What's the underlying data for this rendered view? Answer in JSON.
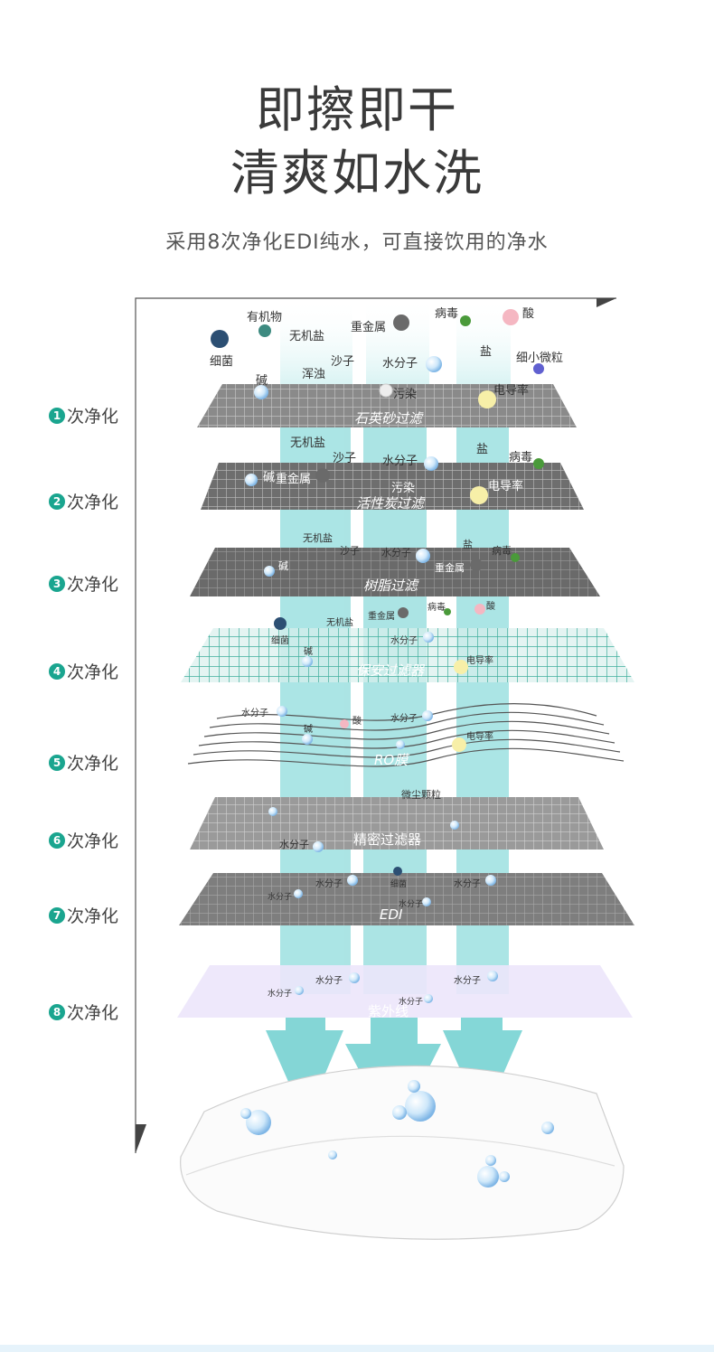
{
  "header": {
    "title_line1": "即擦即干",
    "title_line2": "清爽如水洗",
    "subtitle": "采用8次净化EDI纯水，可直接饮用的净水"
  },
  "steps": [
    {
      "num": "1",
      "label": "次净化"
    },
    {
      "num": "2",
      "label": "次净化"
    },
    {
      "num": "3",
      "label": "次净化"
    },
    {
      "num": "4",
      "label": "次净化"
    },
    {
      "num": "5",
      "label": "次净化"
    },
    {
      "num": "6",
      "label": "次净化"
    },
    {
      "num": "7",
      "label": "次净化"
    },
    {
      "num": "8",
      "label": "次净化"
    }
  ],
  "layers": [
    {
      "name": "石英砂过滤"
    },
    {
      "name": "活性炭过滤"
    },
    {
      "name": "树脂过滤"
    },
    {
      "name": "保安过滤器"
    },
    {
      "name": "RO膜"
    },
    {
      "name": "精密过滤器"
    },
    {
      "name": "EDI"
    },
    {
      "name": "紫外线"
    }
  ],
  "particles": {
    "top": [
      "有机物",
      "无机盐",
      "重金属",
      "病毒",
      "酸",
      "细菌",
      "沙子",
      "水分子",
      "盐",
      "细小微粒",
      "碱",
      "浑浊",
      "污染",
      "电导率"
    ],
    "l2": [
      "无机盐",
      "沙子",
      "水分子",
      "盐",
      "病毒",
      "碱",
      "重金属",
      "污染",
      "电导率"
    ],
    "l3": [
      "无机盐",
      "沙子",
      "水分子",
      "盐",
      "病毒",
      "碱",
      "重金属"
    ],
    "l4": [
      "重金属",
      "病毒",
      "酸",
      "无机盐",
      "细菌",
      "水分子",
      "碱",
      "电导率"
    ],
    "l5": [
      "水分子",
      "酸",
      "水分子",
      "碱",
      "电导率"
    ],
    "l6": [
      "微尘颗粒",
      "水分子"
    ],
    "l7": [
      "水分子",
      "细菌",
      "水分子",
      "水分子",
      "水分子"
    ],
    "l8": [
      "水分子",
      "水分子",
      "水分子",
      "水分子"
    ]
  },
  "colors": {
    "accent": "#1aa58f",
    "beam": "#8fdcdc",
    "arrow": "#6fd0d0",
    "filter_gray": "#7a7a7a",
    "mesh_green": "#4fb8a8",
    "uv_purple": "#ece6fb"
  }
}
